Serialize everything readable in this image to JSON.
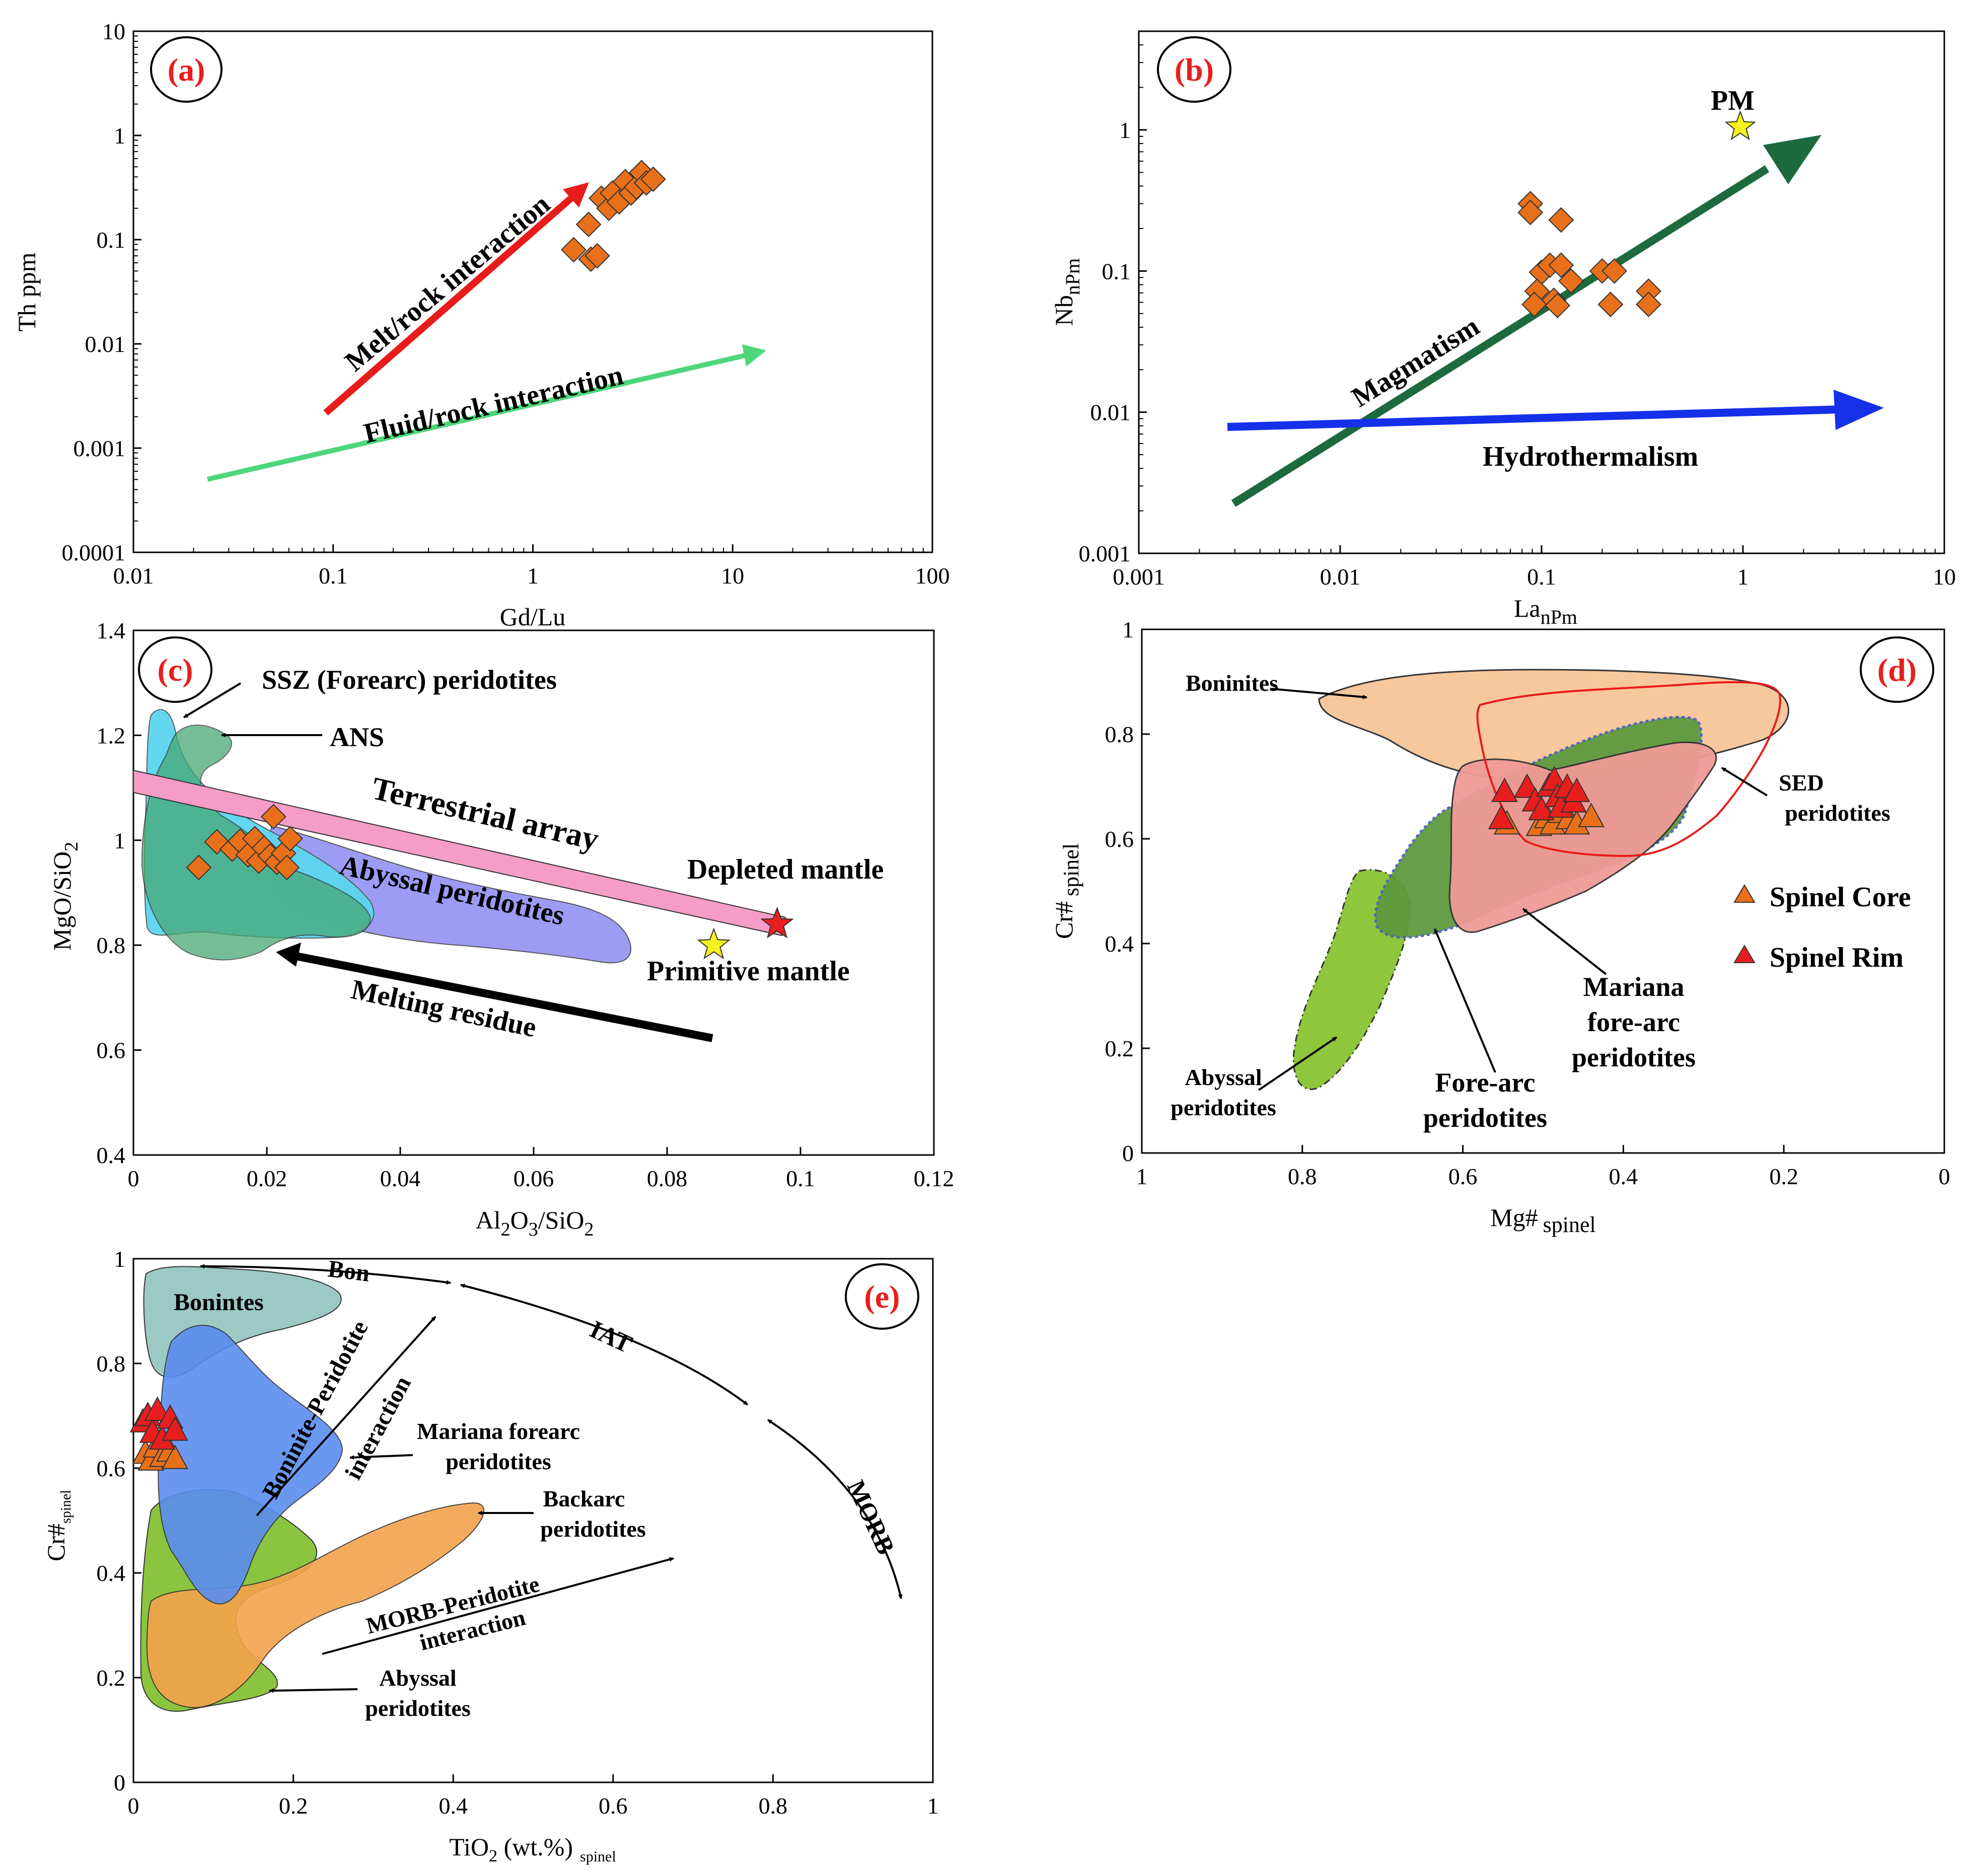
{
  "colors": {
    "orange_marker": "#e8701a",
    "red_marker": "#e81e1e",
    "yellow_star": "#f7f11d",
    "red_arrow": "#e81b1b",
    "green_arrow": "#4ed67b",
    "dark_green_arrow": "#1c6a3e",
    "blue_arrow": "#1530e8",
    "pink_band": "#f59cc9",
    "ssz_field": "#5bd5ef",
    "ans_field": "#48a873",
    "abyssal_field": "#9c9cf5",
    "boninite_field": "#f7c79d",
    "sed_field": "#f09a96",
    "forearc_field": "#5e9a3f",
    "abyssal_d_field": "#8ec63c",
    "bon_e_field": "#9cc9c4",
    "mariana_e_field": "#5a8df0",
    "backarc_e_field": "#f5a24d",
    "abyssal_e_field": "#8bc53f"
  },
  "chart_data": [
    {
      "type": "scatter",
      "panel": "(a)",
      "xlabel": "Gd/Lu",
      "ylabel": "Th ppm",
      "xscale": "log",
      "yscale": "log",
      "xlim": [
        0.01,
        100
      ],
      "ylim": [
        0.0001,
        10
      ],
      "xticks": [
        "0.01",
        "0.1",
        "1",
        "10",
        "100"
      ],
      "yticks": [
        "0.0001",
        "0.001",
        "0.01",
        "0.1",
        "1",
        "10"
      ],
      "points": [
        {
          "x": 1.6,
          "y": 0.08
        },
        {
          "x": 1.9,
          "y": 0.14
        },
        {
          "x": 1.95,
          "y": 0.065
        },
        {
          "x": 2.1,
          "y": 0.07
        },
        {
          "x": 2.2,
          "y": 0.25
        },
        {
          "x": 2.4,
          "y": 0.2
        },
        {
          "x": 2.5,
          "y": 0.28
        },
        {
          "x": 2.7,
          "y": 0.23
        },
        {
          "x": 2.9,
          "y": 0.36
        },
        {
          "x": 3.1,
          "y": 0.28
        },
        {
          "x": 3.3,
          "y": 0.32
        },
        {
          "x": 3.5,
          "y": 0.44
        },
        {
          "x": 3.7,
          "y": 0.35
        },
        {
          "x": 4.0,
          "y": 0.38
        }
      ],
      "arrows": [
        {
          "label": "Melt/rock interaction",
          "from": [
            0.09,
            0.0022
          ],
          "to": [
            1.7,
            0.28
          ]
        },
        {
          "label": "Fluid/rock interaction",
          "from": [
            0.024,
            0.00055
          ],
          "to": [
            16,
            0.0095
          ]
        }
      ]
    },
    {
      "type": "scatter",
      "panel": "(b)",
      "xlabel": "LanPm",
      "ylabel": "NbnPm",
      "xscale": "log",
      "yscale": "log",
      "xlim": [
        0.001,
        10
      ],
      "ylim": [
        0.001,
        5
      ],
      "xticks": [
        "0.001",
        "0.01",
        "0.1",
        "1",
        "10"
      ],
      "yticks": [
        "0.001",
        "0.01",
        "0.1",
        "1"
      ],
      "points": [
        {
          "x": 0.088,
          "y": 0.3
        },
        {
          "x": 0.088,
          "y": 0.26
        },
        {
          "x": 0.125,
          "y": 0.23
        },
        {
          "x": 0.1,
          "y": 0.098
        },
        {
          "x": 0.11,
          "y": 0.11
        },
        {
          "x": 0.125,
          "y": 0.11
        },
        {
          "x": 0.095,
          "y": 0.072
        },
        {
          "x": 0.115,
          "y": 0.062
        },
        {
          "x": 0.14,
          "y": 0.085
        },
        {
          "x": 0.092,
          "y": 0.058
        },
        {
          "x": 0.12,
          "y": 0.057
        },
        {
          "x": 0.2,
          "y": 0.1
        },
        {
          "x": 0.23,
          "y": 0.1
        },
        {
          "x": 0.22,
          "y": 0.058
        },
        {
          "x": 0.34,
          "y": 0.072
        },
        {
          "x": 0.34,
          "y": 0.058
        }
      ],
      "stars": [
        {
          "label": "PM",
          "x": 0.97,
          "y": 1.05
        }
      ],
      "arrows": [
        {
          "label": "Magmatism",
          "from": [
            0.0029,
            0.0023
          ],
          "to": [
            2.4,
            0.9
          ]
        },
        {
          "label": "Hydrothermalism",
          "from": [
            0.0027,
            0.0082
          ],
          "to": [
            4.5,
            0.011
          ]
        }
      ]
    },
    {
      "type": "scatter",
      "panel": "(c)",
      "xlabel": "Al2O3/SiO2",
      "ylabel": "MgO/SiO2",
      "xlim": [
        0,
        0.12
      ],
      "ylim": [
        0.4,
        1.4
      ],
      "xticks": [
        "0",
        "0.02",
        "0.04",
        "0.06",
        "0.08",
        "0.1",
        "0.12"
      ],
      "yticks": [
        "0.4",
        "0.6",
        "0.8",
        "1",
        "1.2",
        "1.4"
      ],
      "points": [
        {
          "x": 0.0098,
          "y": 0.948
        },
        {
          "x": 0.0125,
          "y": 0.997
        },
        {
          "x": 0.0148,
          "y": 0.983
        },
        {
          "x": 0.016,
          "y": 0.998
        },
        {
          "x": 0.0172,
          "y": 0.972
        },
        {
          "x": 0.0182,
          "y": 1.003
        },
        {
          "x": 0.0188,
          "y": 0.96
        },
        {
          "x": 0.0196,
          "y": 0.985
        },
        {
          "x": 0.0205,
          "y": 0.97
        },
        {
          "x": 0.021,
          "y": 1.045
        },
        {
          "x": 0.0215,
          "y": 0.958
        },
        {
          "x": 0.0225,
          "y": 0.975
        },
        {
          "x": 0.023,
          "y": 0.948
        },
        {
          "x": 0.0235,
          "y": 1.003
        }
      ],
      "stars": [
        {
          "label": "Primitive mantle",
          "x": 0.087,
          "y": 0.8,
          "color": "yellow"
        },
        {
          "label": "Depleted mantle",
          "x": 0.0965,
          "y": 0.84,
          "color": "red"
        }
      ],
      "field_labels": [
        "SSZ (Forearc) peridotites",
        "ANS",
        "Terrestrial array",
        "Abyssal peridotites",
        "Melting residue"
      ]
    },
    {
      "type": "scatter",
      "panel": "(d)",
      "xlabel": "Mg# spinel",
      "ylabel": "Cr# spinel",
      "xlim": [
        1,
        0
      ],
      "ylim": [
        0,
        1
      ],
      "xticks": [
        "1",
        "0.8",
        "0.6",
        "0.4",
        "0.2",
        "0"
      ],
      "yticks": [
        "0",
        "0.2",
        "0.4",
        "0.6",
        "0.8",
        "1"
      ],
      "legend": [
        "Spinel Core",
        "Spinel Rim"
      ],
      "spinel_core": [
        {
          "x": 0.545,
          "y": 0.628
        },
        {
          "x": 0.505,
          "y": 0.625
        },
        {
          "x": 0.495,
          "y": 0.64
        },
        {
          "x": 0.488,
          "y": 0.628
        },
        {
          "x": 0.478,
          "y": 0.65
        },
        {
          "x": 0.468,
          "y": 0.638
        },
        {
          "x": 0.458,
          "y": 0.628
        },
        {
          "x": 0.44,
          "y": 0.642
        }
      ],
      "spinel_rim": [
        {
          "x": 0.552,
          "y": 0.638
        },
        {
          "x": 0.548,
          "y": 0.69
        },
        {
          "x": 0.52,
          "y": 0.698
        },
        {
          "x": 0.51,
          "y": 0.672
        },
        {
          "x": 0.502,
          "y": 0.655
        },
        {
          "x": 0.492,
          "y": 0.7
        },
        {
          "x": 0.486,
          "y": 0.712
        },
        {
          "x": 0.482,
          "y": 0.68
        },
        {
          "x": 0.478,
          "y": 0.66
        },
        {
          "x": 0.47,
          "y": 0.698
        },
        {
          "x": 0.462,
          "y": 0.67
        },
        {
          "x": 0.458,
          "y": 0.69
        }
      ],
      "field_labels": [
        "Boninites",
        "SED",
        "peridotites",
        "Mariana",
        "fore-arc",
        "peridotites",
        "Fore-arc",
        "peridotites",
        "Abyssal",
        "peridotites"
      ]
    },
    {
      "type": "scatter",
      "panel": "(e)",
      "xlabel": "TiO2 (wt.%) spinel",
      "ylabel": "Cr#spinel",
      "xlim": [
        0,
        1
      ],
      "ylim": [
        0,
        1
      ],
      "xticks": [
        "0",
        "0.2",
        "0.4",
        "0.6",
        "0.8",
        "1"
      ],
      "yticks": [
        "0",
        "0.2",
        "0.4",
        "0.6",
        "0.8",
        "1"
      ],
      "spinel_core": [
        {
          "x": 0.015,
          "y": 0.628
        },
        {
          "x": 0.022,
          "y": 0.615
        },
        {
          "x": 0.028,
          "y": 0.64
        },
        {
          "x": 0.036,
          "y": 0.622
        },
        {
          "x": 0.045,
          "y": 0.632
        },
        {
          "x": 0.052,
          "y": 0.618
        }
      ],
      "spinel_rim": [
        {
          "x": 0.012,
          "y": 0.688
        },
        {
          "x": 0.018,
          "y": 0.7
        },
        {
          "x": 0.024,
          "y": 0.668
        },
        {
          "x": 0.03,
          "y": 0.71
        },
        {
          "x": 0.036,
          "y": 0.655
        },
        {
          "x": 0.046,
          "y": 0.695
        },
        {
          "x": 0.052,
          "y": 0.672
        }
      ],
      "field_labels": [
        "Bon",
        "IAT",
        "MORB",
        "Bonintes",
        "Boninite-Peridotite",
        "interaction",
        "Mariana forearc",
        "peridotites",
        "Backarc",
        "peridotites",
        "MORB-Peridotite",
        "interaction",
        "Abyssal",
        "peridotites"
      ]
    }
  ],
  "labels": {
    "a": {
      "panel": "(a)",
      "xlabel": "Gd/Lu",
      "ylabel": "Th ppm",
      "arrow1": "Melt/rock interaction",
      "arrow2": "Fluid/rock interaction"
    },
    "b": {
      "panel": "(b)",
      "xlabel_main": "La",
      "xlabel_sub": "nPm",
      "ylabel_main": "Nb",
      "ylabel_sub": "nPm",
      "pm": "PM",
      "arrow1": "Magmatism",
      "arrow2": "Hydrothermalism"
    },
    "c": {
      "panel": "(c)",
      "xlabel_a": "Al",
      "xlabel_b": "2",
      "xlabel_c": "O",
      "xlabel_d": "3",
      "xlabel_e": "/SiO",
      "xlabel_f": "2",
      "ylabel_a": "MgO/SiO",
      "ylabel_b": "2",
      "ssz": "SSZ (Forearc) peridotites",
      "ans": "ANS",
      "terrestrial": "Terrestrial array",
      "abyssal": "Abyssal peridotites",
      "depleted": "Depleted mantle",
      "primitive": "Primitive mantle",
      "melting": "Melting residue"
    },
    "d": {
      "panel": "(d)",
      "xlabel_main": "Mg#",
      "xlabel_sub": "spinel",
      "ylabel_main": "Cr#",
      "ylabel_sub": "spinel",
      "boninites": "Boninites",
      "sed1": "SED",
      "sed2": "peridotites",
      "mariana1": "Mariana",
      "mariana2": "fore-arc",
      "mariana3": "peridotites",
      "forearc1": "Fore-arc",
      "forearc2": "peridotites",
      "abyssal1": "Abyssal",
      "abyssal2": "peridotites",
      "legend_core": "Spinel Core",
      "legend_rim": "Spinel Rim"
    },
    "e": {
      "panel": "(e)",
      "xlabel_main": "TiO",
      "xlabel_sub1": "2",
      "xlabel_mid": " (wt.%)",
      "xlabel_sub2": "spinel",
      "ylabel_main": "Cr#",
      "ylabel_sub": "spinel",
      "bon": "Bon",
      "iat": "IAT",
      "morb": "MORB",
      "bonintes": "Bonintes",
      "bp1": "Boninite-Peridotite",
      "bp2": "interaction",
      "mariana1": "Mariana forearc",
      "mariana2": "peridotites",
      "backarc1": "Backarc",
      "backarc2": "peridotites",
      "mp1": "MORB-Peridotite",
      "mp2": "interaction",
      "abyssal1": "Abyssal",
      "abyssal2": "peridotites"
    }
  }
}
